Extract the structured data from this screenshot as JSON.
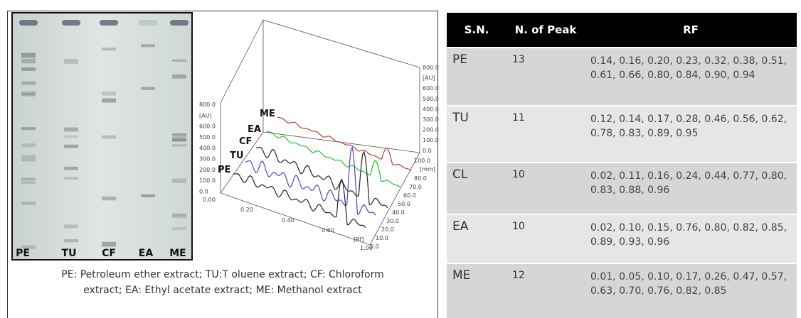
{
  "plate": {
    "lane_labels": [
      "PE",
      "TU",
      "CF",
      "EA",
      "ME"
    ]
  },
  "densitogram": {
    "series_labels": [
      "ME",
      "EA",
      "CF",
      "TU",
      "PE"
    ],
    "left_axis": [
      "800.0",
      "[AU]",
      "600.0",
      "500.0",
      "400.0",
      "300.0",
      "200.0",
      "100.0",
      "0.0"
    ],
    "right_axis": [
      "800.0",
      "[AU]",
      "600.0",
      "500.0",
      "400.0",
      "300.0",
      "200.0",
      "100.0",
      "0.0"
    ],
    "depth_axis": [
      "100.0",
      "[mm]",
      "80.0",
      "70.0",
      "60.0",
      "50.0",
      "40.0",
      "30.0",
      "20.0",
      "10.0",
      "0.0"
    ],
    "rf_axis": [
      "0.00",
      "0.20",
      "0.40",
      "0.60",
      "[Rf]",
      "1.00"
    ]
  },
  "caption": [
    "PE: Petroleum ether extract; TU:T oluene extract; CF: Chloroform",
    "extract;  EA: Ethyl acetate extract; ME: Methanol extract"
  ],
  "table": {
    "headers": [
      "S.N.",
      "N. of Peak",
      "RF"
    ],
    "rows": [
      [
        "PE",
        "13",
        "0.14, 0.16, 0.20, 0.23, 0.32, 0.38, 0.51, 0.61, 0.66, 0.80, 0.84, 0.90, 0.94"
      ],
      [
        "TU",
        "11",
        "0.12, 0.14, 0.17, 0.28, 0.46, 0.56, 0.62, 0.78, 0.83, 0.89, 0.95"
      ],
      [
        "CL",
        "10",
        "0.02, 0.11, 0.16, 0.24, 0.44, 0.77, 0.80, 0.83, 0.88, 0.96"
      ],
      [
        "EA",
        "10",
        "0.02, 0.10, 0.15, 0.76, 0.80, 0.82, 0.85, 0.89, 0.93, 0.96"
      ],
      [
        "ME",
        "12",
        "0.01, 0.05, 0.10, 0.17, 0.26, 0.47, 0.57, 0.63, 0.70, 0.76, 0.82, 0.85"
      ]
    ]
  }
}
